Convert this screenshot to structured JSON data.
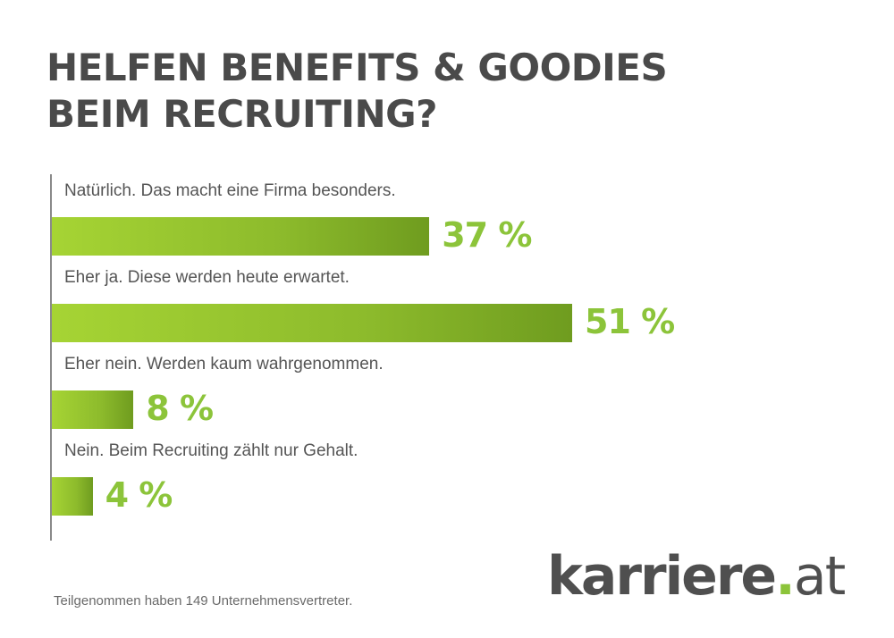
{
  "chart_data": {
    "type": "bar",
    "orientation": "horizontal",
    "title": "HELFEN BENEFITS & GOODIES BEIM RECRUITING?",
    "title_lines": [
      "HELFEN BENEFITS & GOODIES",
      "BEIM RECRUITING?"
    ],
    "categories": [
      "Natürlich. Das macht eine Firma besonders.",
      "Eher ja. Diese werden heute erwartet.",
      "Eher nein. Werden kaum wahrgenommen.",
      "Nein. Beim Recruiting zählt nur Gehalt."
    ],
    "values": [
      37,
      51,
      8,
      4
    ],
    "value_labels": [
      "37 %",
      "51 %",
      "8 %",
      "4 %"
    ],
    "unit": "%",
    "xlim": [
      0,
      100
    ],
    "bar_color": "#8cc43a",
    "label_color": "#8cc43a"
  },
  "footnote": "Teilgenommen haben 149 Unternehmensvertreter.",
  "logo": {
    "name": "karriere",
    "dot": ".",
    "tld": "at"
  }
}
